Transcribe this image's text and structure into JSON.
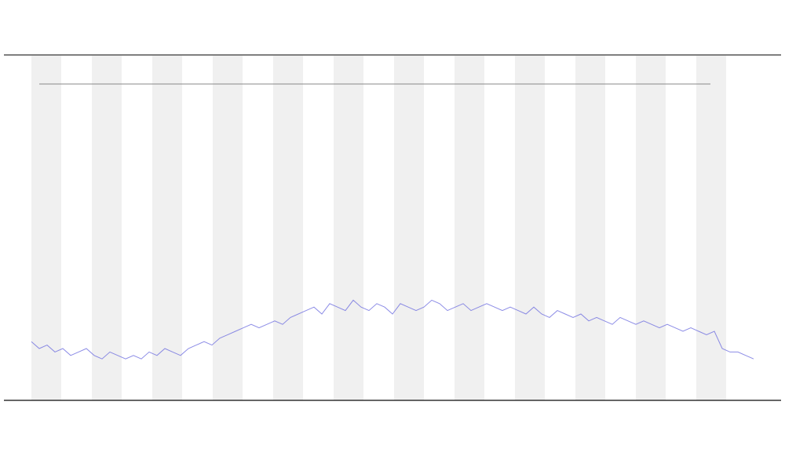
{
  "chart_data": {
    "type": "line",
    "values": [
      17,
      15,
      16,
      14,
      15,
      13,
      14,
      15,
      13,
      12,
      14,
      13,
      12,
      13,
      12,
      14,
      13,
      15,
      14,
      13,
      15,
      16,
      17,
      16,
      18,
      19,
      20,
      21,
      22,
      21,
      22,
      23,
      22,
      24,
      25,
      26,
      27,
      25,
      28,
      27,
      26,
      29,
      27,
      26,
      28,
      27,
      25,
      28,
      27,
      26,
      27,
      29,
      28,
      26,
      27,
      28,
      26,
      27,
      28,
      27,
      26,
      27,
      26,
      25,
      27,
      25,
      24,
      26,
      25,
      24,
      25,
      23,
      24,
      23,
      22,
      24,
      23,
      22,
      23,
      22,
      21,
      22,
      21,
      20,
      21,
      20,
      19,
      20,
      15,
      14,
      14,
      13,
      12
    ],
    "color": "#6f6fe0",
    "ylim": [
      0,
      100
    ]
  }
}
